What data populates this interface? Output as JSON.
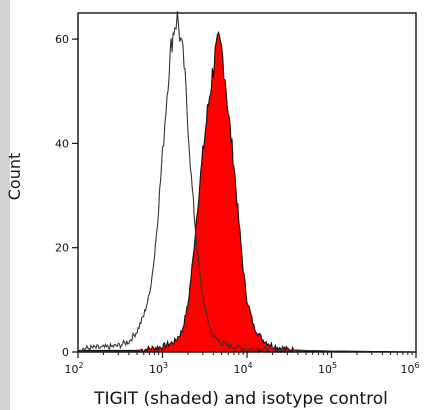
{
  "chart_data": {
    "type": "area",
    "xlabel": "TIGIT (shaded) and isotype control",
    "ylabel": "Count",
    "x_scale": "log",
    "xlim": [
      100,
      1000000
    ],
    "ylim": [
      0,
      65
    ],
    "x_ticks": [
      100,
      1000,
      10000,
      100000,
      1000000
    ],
    "x_tick_labels": [
      {
        "base": "10",
        "exp": "2"
      },
      {
        "base": "10",
        "exp": "3"
      },
      {
        "base": "10",
        "exp": "4"
      },
      {
        "base": "10",
        "exp": "5"
      },
      {
        "base": "10",
        "exp": "6"
      }
    ],
    "y_ticks": [
      0,
      20,
      40,
      60
    ],
    "y_tick_labels": [
      "0",
      "20",
      "40",
      "60"
    ],
    "grid": false,
    "legend": "none",
    "series": [
      {
        "style": "outline",
        "color": "#333333",
        "points": [
          [
            100,
            0.5
          ],
          [
            150,
            0.8
          ],
          [
            200,
            0.8
          ],
          [
            300,
            1.2
          ],
          [
            400,
            2
          ],
          [
            500,
            4
          ],
          [
            600,
            7
          ],
          [
            700,
            11
          ],
          [
            800,
            18
          ],
          [
            900,
            28
          ],
          [
            1000,
            38
          ],
          [
            1100,
            47
          ],
          [
            1200,
            55
          ],
          [
            1300,
            60
          ],
          [
            1400,
            63
          ],
          [
            1500,
            64
          ],
          [
            1600,
            61
          ],
          [
            1800,
            55
          ],
          [
            2000,
            44
          ],
          [
            2200,
            33
          ],
          [
            2500,
            22
          ],
          [
            2800,
            14
          ],
          [
            3200,
            8
          ],
          [
            3600,
            5
          ],
          [
            4000,
            3
          ],
          [
            5000,
            1.8
          ],
          [
            6000,
            1.2
          ],
          [
            8000,
            0.9
          ],
          [
            10000,
            0.6
          ],
          [
            20000,
            0.5
          ],
          [
            50000,
            0.3
          ],
          [
            100000,
            0.2
          ],
          [
            1000000,
            0
          ]
        ]
      },
      {
        "style": "filled",
        "color": "#ff0000",
        "points": [
          [
            100,
            0.3
          ],
          [
            500,
            0.3
          ],
          [
            1000,
            1
          ],
          [
            1400,
            2
          ],
          [
            1700,
            4
          ],
          [
            2000,
            9
          ],
          [
            2300,
            18
          ],
          [
            2600,
            28
          ],
          [
            3000,
            38
          ],
          [
            3400,
            46
          ],
          [
            3800,
            52
          ],
          [
            4200,
            57
          ],
          [
            4600,
            59
          ],
          [
            5000,
            58
          ],
          [
            5500,
            53
          ],
          [
            6000,
            46
          ],
          [
            7000,
            36
          ],
          [
            8000,
            25
          ],
          [
            9000,
            16
          ],
          [
            10000,
            10
          ],
          [
            12000,
            5
          ],
          [
            15000,
            2.5
          ],
          [
            20000,
            1.2
          ],
          [
            30000,
            0.5
          ],
          [
            50000,
            0.2
          ],
          [
            100000,
            0
          ],
          [
            1000000,
            0
          ]
        ]
      }
    ]
  }
}
